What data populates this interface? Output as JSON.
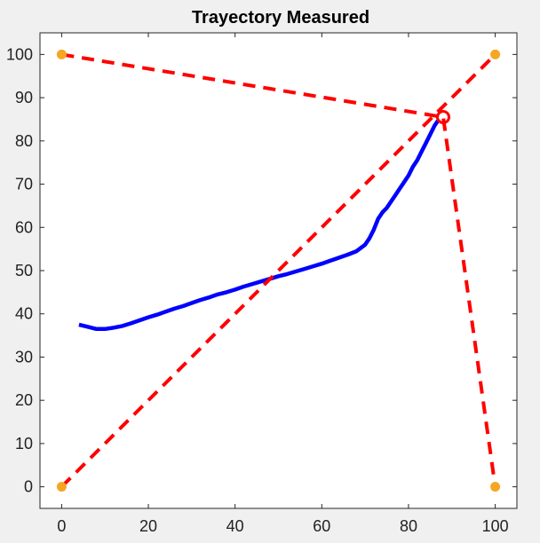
{
  "chart_data": {
    "type": "line",
    "title": "Trayectory Measured",
    "xlabel": "",
    "ylabel": "",
    "xlim": [
      -5,
      105
    ],
    "ylim": [
      -5,
      105
    ],
    "x_ticks": [
      0,
      20,
      40,
      60,
      80,
      100
    ],
    "y_ticks": [
      0,
      10,
      20,
      30,
      40,
      50,
      60,
      70,
      80,
      90,
      100
    ],
    "grid": false,
    "series": [
      {
        "style": "solid",
        "color": "#0000ff",
        "x": [
          4,
          6,
          8,
          10,
          12,
          14,
          16,
          18,
          20,
          22,
          24,
          26,
          28,
          30,
          32,
          34,
          36,
          38,
          40,
          42,
          44,
          46,
          48,
          50,
          52,
          54,
          56,
          58,
          60,
          62,
          64,
          66,
          68,
          70,
          71,
          72,
          73,
          74,
          75,
          76,
          77,
          78,
          79,
          80,
          81,
          82,
          83,
          84,
          85,
          86,
          87
        ],
        "y": [
          37.5,
          37,
          36.5,
          36.5,
          36.8,
          37.2,
          37.8,
          38.5,
          39.2,
          39.8,
          40.5,
          41.2,
          41.8,
          42.5,
          43.2,
          43.8,
          44.5,
          45,
          45.6,
          46.3,
          46.9,
          47.5,
          48.1,
          48.7,
          49.2,
          49.8,
          50.4,
          51,
          51.6,
          52.3,
          53,
          53.7,
          54.5,
          56,
          57.5,
          59.5,
          62,
          63.5,
          64.5,
          66,
          67.5,
          69,
          70.5,
          72,
          74,
          75.5,
          77.5,
          79.5,
          81.5,
          83.5,
          85
        ]
      },
      {
        "style": "dashed",
        "color": "#ff0000",
        "x": [
          0,
          88,
          100
        ],
        "y": [
          100,
          85.5,
          0
        ]
      },
      {
        "style": "dashed",
        "color": "#ff0000",
        "x": [
          0,
          100
        ],
        "y": [
          0,
          100
        ]
      }
    ],
    "markers": {
      "color": "#f5a623",
      "points": [
        {
          "x": 0,
          "y": 100
        },
        {
          "x": 100,
          "y": 100
        },
        {
          "x": 0,
          "y": 0
        },
        {
          "x": 100,
          "y": 0
        }
      ]
    },
    "end_marker": {
      "color": "#ff0000",
      "x": 88,
      "y": 85.5
    }
  }
}
